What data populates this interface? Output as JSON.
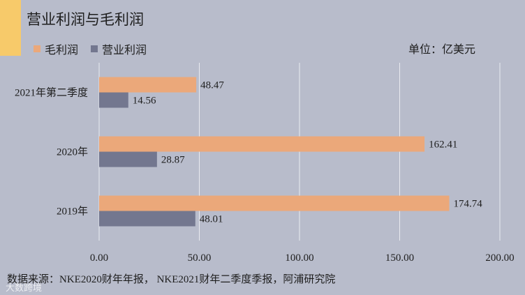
{
  "chart_data": {
    "type": "bar",
    "orientation": "horizontal",
    "title": "营业利润与毛利润",
    "unit_label": "单位：亿美元",
    "categories": [
      "2021年第二季度",
      "2020年",
      "2019年"
    ],
    "series": [
      {
        "name": "毛利润",
        "color": "#eba87a",
        "values": [
          48.47,
          162.41,
          174.74
        ],
        "labels": [
          "48.47",
          "162.41",
          "174.74"
        ]
      },
      {
        "name": "营业利润",
        "color": "#73778f",
        "values": [
          14.56,
          28.87,
          48.01
        ],
        "labels": [
          "14.56",
          "28.87",
          "48.01"
        ]
      }
    ],
    "xlim": [
      0,
      200
    ],
    "xticks": [
      0,
      50,
      100,
      150,
      200
    ],
    "xtick_labels": [
      "0.00",
      "50.00",
      "100.00",
      "150.00",
      "200.00"
    ],
    "grid": true,
    "legend_position": "top-left",
    "source": "数据来源：NKE2020财年年报，  NKE2021财年二季度季报，阿浦研究院"
  },
  "watermark": "大数跨境"
}
